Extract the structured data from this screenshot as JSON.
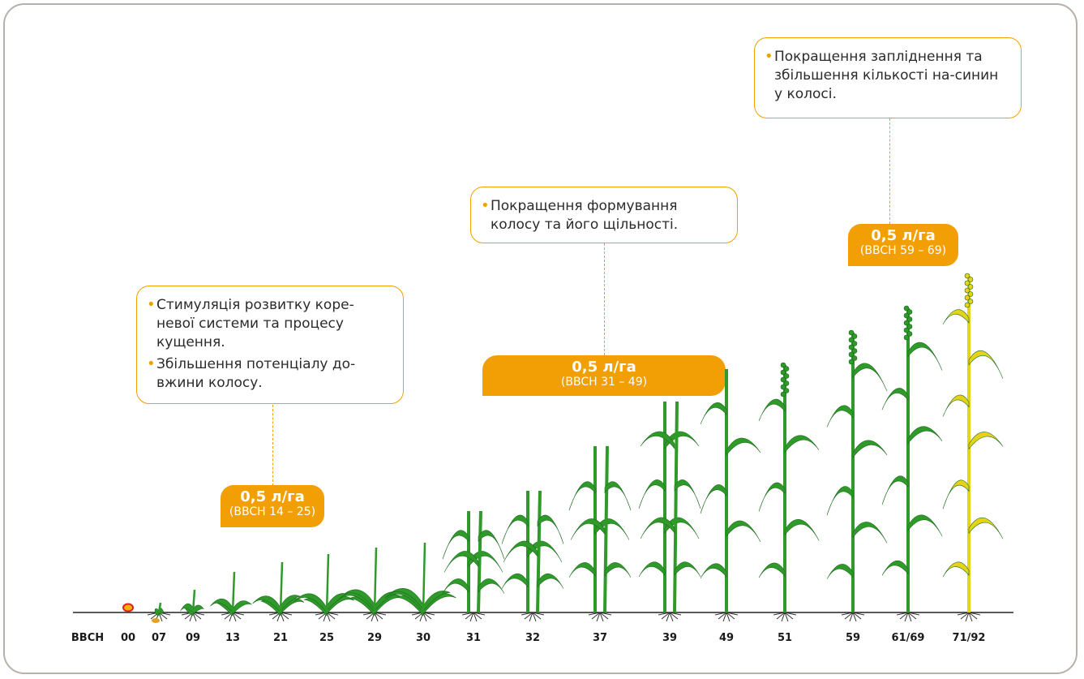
{
  "axis": {
    "prefix": "BBCH",
    "stages": [
      "00",
      "07",
      "09",
      "13",
      "21",
      "25",
      "29",
      "30",
      "31",
      "32",
      "37",
      "39",
      "49",
      "51",
      "59",
      "61/69",
      "71/92"
    ]
  },
  "applications": [
    {
      "rate": "0,5 л/га",
      "range": "(BBCH 14 – 25)",
      "benefits": [
        "Стимуляція розвитку коре-невої системи та процесу кущення.",
        "Збільшення потенціалу до-вжини колосу."
      ]
    },
    {
      "rate": "0,5 л/га",
      "range": "(BBCH 31 – 49)",
      "benefits": [
        "Покращення формування колосу та його щільності."
      ]
    },
    {
      "rate": "0,5 л/га",
      "range": "(BBCH 59 – 69)",
      "benefits": [
        "Покращення запліднення та збільшення кількості на-синин у колосі."
      ]
    }
  ],
  "colors": {
    "accent": "#f29f05",
    "plant_green": "#2f9a2a",
    "plant_dark": "#1c6b1e",
    "ripe_yellow": "#e7d21a",
    "frame": "#b8b0a9"
  }
}
